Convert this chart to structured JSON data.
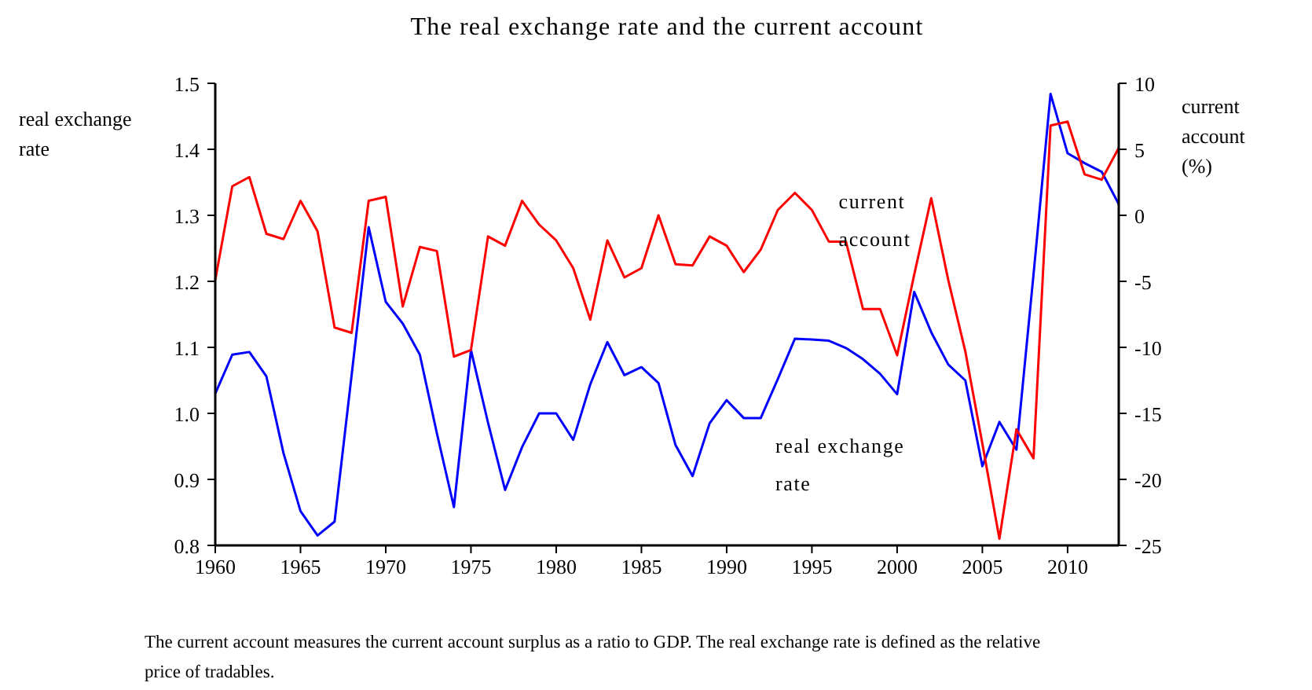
{
  "chart_data": {
    "type": "line",
    "title": "The real exchange rate and the current account",
    "ylabel": "real exchange rate",
    "y2label": "current account (%)",
    "x": [
      1960,
      1961,
      1962,
      1963,
      1964,
      1965,
      1966,
      1967,
      1968,
      1969,
      1970,
      1971,
      1972,
      1973,
      1974,
      1975,
      1976,
      1977,
      1978,
      1979,
      1980,
      1981,
      1982,
      1983,
      1984,
      1985,
      1986,
      1987,
      1988,
      1989,
      1990,
      1991,
      1992,
      1993,
      1994,
      1995,
      1996,
      1997,
      1998,
      1999,
      2000,
      2001,
      2002,
      2003,
      2004,
      2005,
      2006,
      2007,
      2008,
      2009,
      2010,
      2011,
      2012,
      2013
    ],
    "series": [
      {
        "name": "real exchange rate",
        "color": "#0000ff",
        "values": [
          1.03,
          1.089,
          1.093,
          1.056,
          0.94,
          0.852,
          0.815,
          0.836,
          1.058,
          1.282,
          1.169,
          1.136,
          1.089,
          0.97,
          0.858,
          1.096,
          0.986,
          0.884,
          0.949,
          1.0,
          1.0,
          0.96,
          1.044,
          1.108,
          1.058,
          1.07,
          1.046,
          0.952,
          0.905,
          0.985,
          1.02,
          0.993,
          0.993,
          1.052,
          1.113,
          1.112,
          1.11,
          1.099,
          1.082,
          1.06,
          1.029,
          1.184,
          1.123,
          1.074,
          1.05,
          0.92,
          0.987,
          0.945,
          1.21,
          1.484,
          1.394,
          1.379,
          1.366,
          1.317
        ]
      },
      {
        "name": "current account",
        "color": "#ff0000",
        "axis": "y2",
        "values": [
          -4.9,
          2.2,
          2.9,
          -1.4,
          -1.8,
          1.1,
          -1.2,
          -8.5,
          -8.9,
          1.1,
          1.4,
          -6.9,
          -2.4,
          -2.7,
          -10.7,
          -10.2,
          -1.6,
          -2.3,
          1.1,
          -0.7,
          -1.9,
          -4.0,
          -7.9,
          -1.9,
          -4.7,
          -4.0,
          0.0,
          -3.7,
          -3.8,
          -1.6,
          -2.3,
          -4.3,
          -2.6,
          0.4,
          1.7,
          0.4,
          -2.0,
          -2.0,
          -7.1,
          -7.1,
          -10.6,
          -4.5,
          1.3,
          -4.9,
          -10.3,
          -17.3,
          -24.5,
          -16.2,
          -18.4,
          6.8,
          7.1,
          3.1,
          2.7,
          5.1
        ]
      }
    ],
    "xlim": [
      1960,
      2013
    ],
    "xticks": [
      1960,
      1965,
      1970,
      1975,
      1980,
      1985,
      1990,
      1995,
      2000,
      2005,
      2010
    ],
    "ylim": [
      0.8,
      1.5
    ],
    "yticks": [
      {
        "value": 0.8,
        "label": "0.8"
      },
      {
        "value": 0.9,
        "label": "0.9"
      },
      {
        "value": 1.0,
        "label": "1.0"
      },
      {
        "value": 1.1,
        "label": "1.1"
      },
      {
        "value": 1.2,
        "label": "1.2"
      },
      {
        "value": 1.3,
        "label": "1.3"
      },
      {
        "value": 1.4,
        "label": "1.4"
      },
      {
        "value": 1.5,
        "label": "1.5"
      }
    ],
    "y2lim": [
      -25,
      10
    ],
    "y2ticks": [
      -25,
      -20,
      -15,
      -10,
      -5,
      0,
      5,
      10
    ],
    "annotations": [
      "The current account measures the current account surplus as a ratio to GDP. The real exchange rate is defined as the relative price of tradables."
    ],
    "grid": false,
    "legend": false,
    "marker": "none",
    "line_style": "solid"
  }
}
